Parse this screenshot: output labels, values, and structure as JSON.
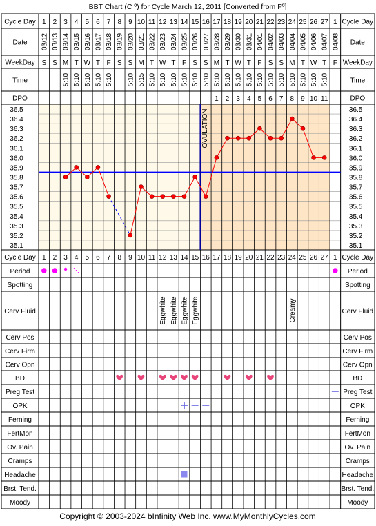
{
  "title": "BBT Chart (C º) for Cycle March 12, 2011  [Converted from Fº]",
  "copyright": "Copyright © 2003-2024 bInfinity Web Inc.    www.MyMonthlyCycles.com",
  "row_labels": {
    "cycle_day": "Cycle Day",
    "date": "Date",
    "weekday": "WeekDay",
    "time": "Time",
    "dpo": "DPO",
    "period": "Period",
    "spotting": "Spotting",
    "cerv_fluid": "Cerv Fluid",
    "cerv_pos": "Cerv Pos",
    "cerv_firm": "Cerv Firm",
    "cerv_opn": "Cerv Opn",
    "bd": "BD",
    "preg_test": "Preg Test",
    "opk": "OPK",
    "ferning": "Ferning",
    "fertmon": "FertMon",
    "ov_pain": "Ov. Pain",
    "cramps": "Cramps",
    "headache": "Headache",
    "brst_tend": "Brst. Tend.",
    "moody": "Moody"
  },
  "days": [
    "1",
    "2",
    "3",
    "4",
    "5",
    "6",
    "7",
    "8",
    "9",
    "10",
    "11",
    "12",
    "13",
    "14",
    "15",
    "16",
    "17",
    "18",
    "19",
    "20",
    "21",
    "22",
    "23",
    "24",
    "25",
    "26",
    "27",
    "1"
  ],
  "dates": [
    "03/12",
    "03/13",
    "03/14",
    "03/15",
    "03/16",
    "03/17",
    "03/18",
    "03/19",
    "03/20",
    "03/21",
    "03/22",
    "03/23",
    "03/24",
    "03/25",
    "03/26",
    "03/27",
    "03/28",
    "03/29",
    "03/30",
    "03/31",
    "04/01",
    "04/02",
    "04/03",
    "04/04",
    "04/05",
    "04/06",
    "04/07",
    "04/08"
  ],
  "weekdays": [
    "S",
    "S",
    "M",
    "T",
    "W",
    "T",
    "F",
    "S",
    "S",
    "M",
    "T",
    "W",
    "T",
    "F",
    "S",
    "S",
    "M",
    "T",
    "W",
    "T",
    "F",
    "S",
    "S",
    "M",
    "T",
    "W",
    "T",
    "F"
  ],
  "times": [
    "",
    "",
    "5:10",
    "5:10",
    "5:10",
    "5:10",
    "5:10",
    "",
    "5:10",
    "5:15",
    "5:10",
    "5:10",
    "5:10",
    "5:10",
    "5:10",
    "5:10",
    "5:10",
    "5:10",
    "5:10",
    "5:10",
    "5:10",
    "5:10",
    "5:10",
    "5:10",
    "5:10",
    "5:10",
    "5:10",
    ""
  ],
  "dpo": [
    "",
    "",
    "",
    "",
    "",
    "",
    "",
    "",
    "",
    "",
    "",
    "",
    "",
    "",
    "",
    "",
    "1",
    "2",
    "3",
    "4",
    "5",
    "6",
    "7",
    "8",
    "9",
    "10",
    "11",
    ""
  ],
  "ovulation_label": "OVULATION",
  "cerv_fluid_labels": [
    "",
    "",
    "",
    "",
    "",
    "",
    "",
    "",
    "",
    "",
    "",
    "Eggwhite",
    "Eggwhite",
    "Eggwhite",
    "Eggwhite",
    "",
    "",
    "",
    "",
    "",
    "",
    "",
    "",
    "Creamy",
    "",
    "",
    "",
    ""
  ],
  "colors": {
    "line": "#ff0000",
    "point": "#ff0000",
    "coverline": "#0000ff",
    "ovulation_line": "#000099",
    "postov_fill": "#fde5c6",
    "preov_fill": "#fef9e9",
    "period": "#ff00ff",
    "heart": "#e8457a",
    "opk": "#6666dd",
    "headache": "#8888ee"
  },
  "chart_data": {
    "type": "line",
    "title": "BBT Chart (C º) for Cycle March 12, 2011  [Converted from Fº]",
    "x": [
      1,
      2,
      3,
      4,
      5,
      6,
      7,
      8,
      9,
      10,
      11,
      12,
      13,
      14,
      15,
      16,
      17,
      18,
      19,
      20,
      21,
      22,
      23,
      24,
      25,
      26,
      27
    ],
    "y_ticks": [
      "36.5",
      "36.4",
      "36.3",
      "36.2",
      "36.1",
      "36.0",
      "35.9",
      "35.8",
      "35.7",
      "35.6",
      "35.5",
      "35.4",
      "35.3",
      "35.2",
      "35.1"
    ],
    "ylim": [
      35.1,
      36.5
    ],
    "series": [
      {
        "values": [
          null,
          null,
          35.8,
          35.9,
          35.8,
          35.9,
          35.6,
          null,
          35.2,
          35.7,
          35.6,
          35.6,
          35.6,
          35.6,
          35.8,
          35.6,
          36.0,
          36.2,
          36.2,
          36.2,
          36.3,
          36.2,
          36.2,
          36.4,
          36.3,
          36.0,
          36.0
        ]
      }
    ],
    "coverline": 35.85,
    "ovulation_day": 16,
    "grid": true
  },
  "period": [
    "big",
    "big",
    "small",
    "spot",
    "",
    "",
    "",
    "",
    "",
    "",
    "",
    "",
    "",
    "",
    "",
    "",
    "",
    "",
    "",
    "",
    "",
    "",
    "",
    "",
    "",
    "",
    "",
    "big"
  ],
  "bd": [
    false,
    false,
    false,
    false,
    false,
    false,
    false,
    true,
    false,
    true,
    false,
    true,
    true,
    true,
    true,
    false,
    false,
    true,
    false,
    true,
    false,
    true,
    false,
    false,
    false,
    false,
    false,
    false
  ],
  "preg_test": [
    "",
    "",
    "",
    "",
    "",
    "",
    "",
    "",
    "",
    "",
    "",
    "",
    "",
    "",
    "",
    "",
    "",
    "",
    "",
    "",
    "",
    "",
    "",
    "",
    "",
    "",
    "",
    "neg"
  ],
  "opk": [
    "",
    "",
    "",
    "",
    "",
    "",
    "",
    "",
    "",
    "",
    "",
    "",
    "",
    "pos",
    "neg",
    "neg",
    "",
    "",
    "",
    "",
    "",
    "",
    "",
    "",
    "",
    "",
    "",
    ""
  ],
  "headache": [
    false,
    false,
    false,
    false,
    false,
    false,
    false,
    false,
    false,
    false,
    false,
    false,
    false,
    true,
    false,
    false,
    false,
    false,
    false,
    false,
    false,
    false,
    false,
    false,
    false,
    false,
    false,
    false
  ]
}
